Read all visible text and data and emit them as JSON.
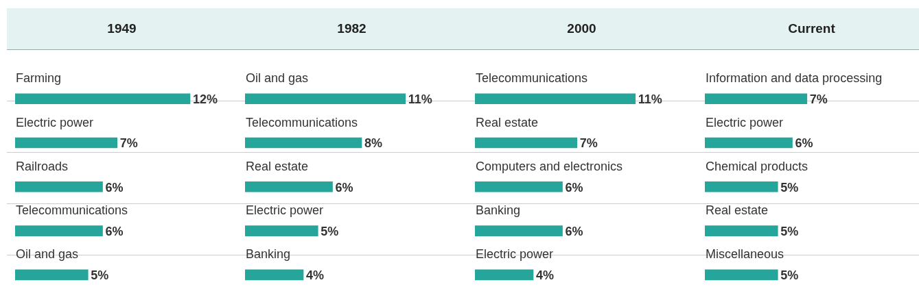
{
  "chart_data": [
    {
      "type": "bar",
      "orientation": "horizontal",
      "title": "1949",
      "categories": [
        "Farming",
        "Electric power",
        "Railroads",
        "Telecommunications",
        "Oil and gas"
      ],
      "values": [
        12,
        7,
        6,
        6,
        5
      ],
      "value_labels": [
        "12%",
        "7%",
        "6%",
        "6%",
        "5%"
      ],
      "color": "#26a69a"
    },
    {
      "type": "bar",
      "orientation": "horizontal",
      "title": "1982",
      "categories": [
        "Oil and gas",
        "Telecommunications",
        "Real estate",
        "Electric power",
        "Banking"
      ],
      "values": [
        11,
        8,
        6,
        5,
        4
      ],
      "value_labels": [
        "11%",
        "8%",
        "6%",
        "5%",
        "4%"
      ],
      "color": "#26a69a"
    },
    {
      "type": "bar",
      "orientation": "horizontal",
      "title": "2000",
      "categories": [
        "Telecommunications",
        "Real estate",
        "Computers and electronics",
        "Banking",
        "Electric power"
      ],
      "values": [
        11,
        7,
        6,
        6,
        4
      ],
      "value_labels": [
        "11%",
        "7%",
        "6%",
        "6%",
        "4%"
      ],
      "color": "#26a69a"
    },
    {
      "type": "bar",
      "orientation": "horizontal",
      "title": "Current",
      "categories": [
        "Information and data processing",
        "Electric power",
        "Chemical products",
        "Real estate",
        "Miscellaneous"
      ],
      "values": [
        7,
        6,
        5,
        5,
        5
      ],
      "value_labels": [
        "7%",
        "6%",
        "5%",
        "5%",
        "5%"
      ],
      "color": "#26a69a"
    }
  ]
}
